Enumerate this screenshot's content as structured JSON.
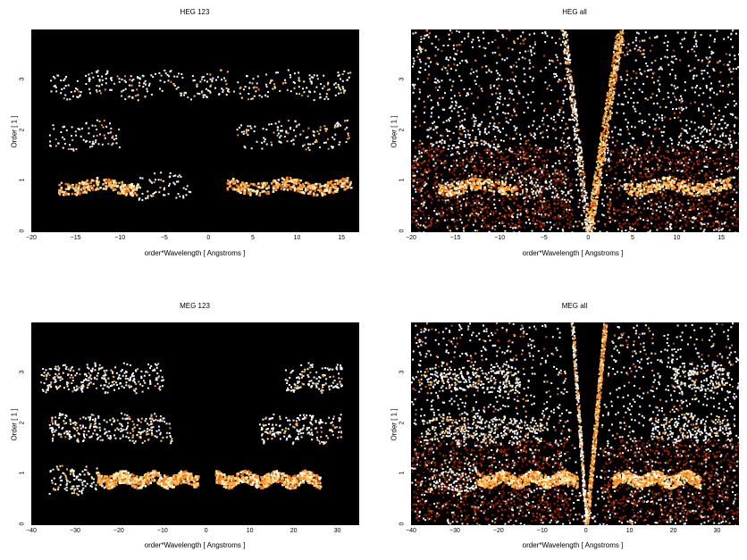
{
  "colors": {
    "background": "#000000",
    "hot_low": "#7a1a00",
    "hot_mid": "#ff7a10",
    "hot_high": "#fffde0",
    "speckle": "#ffffff"
  },
  "chart_data": [
    {
      "type": "heatmap",
      "title": "HEG 123",
      "xlabel": "order*Wavelength [ Angstroms ]",
      "ylabel": "Order [ 1 ]",
      "xlim": [
        -20,
        17
      ],
      "ylim": [
        0,
        4
      ],
      "xticks": [
        -20,
        -15,
        -10,
        -5,
        0,
        5,
        10,
        15
      ],
      "yticks": [
        0,
        1,
        2,
        3
      ],
      "grid": false,
      "bands": [
        {
          "order": 1,
          "x": [
            -17,
            -8
          ],
          "intensity": 1.0
        },
        {
          "order": 1,
          "x": [
            -8,
            -2
          ],
          "intensity": 0.5
        },
        {
          "order": 1,
          "x": [
            2,
            16
          ],
          "intensity": 0.9
        },
        {
          "order": 2,
          "x": [
            -18,
            -10
          ],
          "intensity": 0.3
        },
        {
          "order": 2,
          "x": [
            3,
            16
          ],
          "intensity": 0.3
        },
        {
          "order": 3,
          "x": [
            -18,
            16
          ],
          "intensity": 0.05
        }
      ],
      "gap": [
        -2,
        2
      ],
      "background_speckle": 0
    },
    {
      "type": "heatmap",
      "title": "HEG all",
      "xlabel": "order*Wavelength [ Angstroms ]",
      "ylabel": "Order [ 1 ]",
      "xlim": [
        -20,
        17
      ],
      "ylim": [
        0,
        4
      ],
      "xticks": [
        -20,
        -15,
        -10,
        -5,
        0,
        5,
        10,
        15
      ],
      "yticks": [
        0,
        1,
        2,
        3
      ],
      "grid": false,
      "bands": [
        {
          "order": 1,
          "x": [
            -17,
            -8
          ],
          "intensity": 1.0
        },
        {
          "order": 1,
          "x": [
            -8,
            -2
          ],
          "intensity": 0.5
        },
        {
          "order": 1,
          "x": [
            4,
            16
          ],
          "intensity": 0.9
        },
        {
          "order": 2,
          "x": [
            -18,
            -10
          ],
          "intensity": 0.3
        },
        {
          "order": 2,
          "x": [
            10,
            16
          ],
          "intensity": 0.3
        }
      ],
      "gap": [
        -3,
        3
      ],
      "streak": {
        "x0": 0,
        "slope": 0.9
      },
      "background_speckle": 0.9
    },
    {
      "type": "heatmap",
      "title": "MEG 123",
      "xlabel": "order*Wavelength [ Angstroms ]",
      "ylabel": "Order [ 1 ]",
      "xlim": [
        -40,
        35
      ],
      "ylim": [
        0,
        4
      ],
      "xticks": [
        -40,
        -30,
        -20,
        -10,
        0,
        10,
        20,
        30
      ],
      "yticks": [
        0,
        1,
        2,
        3
      ],
      "grid": false,
      "bands": [
        {
          "order": 1,
          "x": [
            -36,
            -25
          ],
          "intensity": 0.4
        },
        {
          "order": 1,
          "x": [
            -25,
            -8
          ],
          "intensity": 1.0
        },
        {
          "order": 1,
          "x": [
            -8,
            -2
          ],
          "intensity": 0.6
        },
        {
          "order": 1,
          "x": [
            2,
            26
          ],
          "intensity": 1.0
        },
        {
          "order": 2,
          "x": [
            -36,
            -8
          ],
          "intensity": 0.35
        },
        {
          "order": 2,
          "x": [
            12,
            31
          ],
          "intensity": 0.35
        },
        {
          "order": 3,
          "x": [
            -38,
            -10
          ],
          "intensity": 0.3
        },
        {
          "order": 3,
          "x": [
            18,
            31
          ],
          "intensity": 0.35
        }
      ],
      "gap": [
        -3,
        3
      ],
      "background_speckle": 0
    },
    {
      "type": "heatmap",
      "title": "MEG all",
      "xlabel": "order*Wavelength [ Angstroms ]",
      "ylabel": "Order [ 1 ]",
      "xlim": [
        -40,
        35
      ],
      "ylim": [
        0,
        4
      ],
      "xticks": [
        -40,
        -30,
        -20,
        -10,
        0,
        10,
        20,
        30
      ],
      "yticks": [
        0,
        1,
        2,
        3
      ],
      "grid": false,
      "bands": [
        {
          "order": 1,
          "x": [
            -36,
            -25
          ],
          "intensity": 0.4
        },
        {
          "order": 1,
          "x": [
            -25,
            -8
          ],
          "intensity": 1.0
        },
        {
          "order": 1,
          "x": [
            -8,
            -2
          ],
          "intensity": 0.6
        },
        {
          "order": 1,
          "x": [
            6,
            26
          ],
          "intensity": 1.0
        },
        {
          "order": 2,
          "x": [
            -38,
            -10
          ],
          "intensity": 0.3
        },
        {
          "order": 2,
          "x": [
            15,
            33
          ],
          "intensity": 0.3
        },
        {
          "order": 3,
          "x": [
            -38,
            -15
          ],
          "intensity": 0.3
        },
        {
          "order": 3,
          "x": [
            20,
            33
          ],
          "intensity": 0.3
        }
      ],
      "gap": [
        -6,
        6
      ],
      "streak": {
        "x0": 0,
        "slope": 0.9
      },
      "background_speckle": 0.9
    }
  ]
}
